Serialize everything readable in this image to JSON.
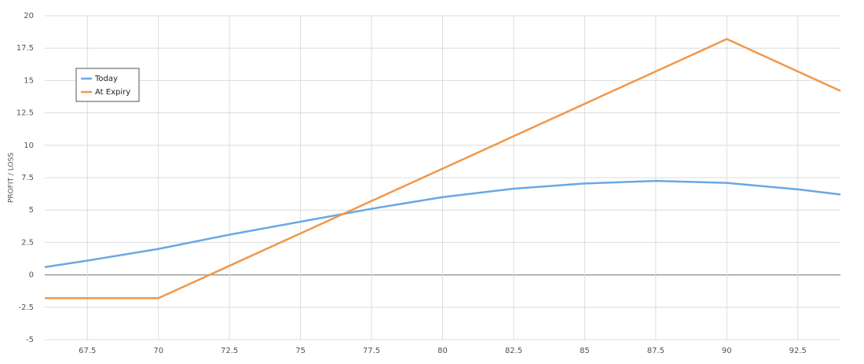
{
  "chart_data": {
    "type": "line",
    "y_label": "PROFIT / LOSS",
    "x": [
      66,
      67.5,
      70,
      72.5,
      75,
      77.5,
      80,
      82.5,
      85,
      87.5,
      90,
      92.5,
      94
    ],
    "series": [
      {
        "name": "Today",
        "color": "#6aa8e3",
        "values": [
          0.6,
          1.1,
          2.0,
          3.1,
          4.1,
          5.1,
          6.0,
          6.65,
          7.05,
          7.25,
          7.1,
          6.6,
          6.2
        ]
      },
      {
        "name": "At Expiry",
        "color": "#f0984a",
        "values": [
          -1.8,
          -1.8,
          -1.8,
          0.7,
          3.2,
          5.7,
          8.2,
          10.7,
          13.2,
          15.7,
          18.2,
          15.7,
          14.2
        ]
      }
    ],
    "xlim": [
      66,
      94
    ],
    "ylim": [
      -5,
      20
    ],
    "xticks": [
      67.5,
      70,
      72.5,
      75,
      77.5,
      80,
      82.5,
      85,
      87.5,
      90,
      92.5
    ],
    "yticks": [
      -5,
      -2.5,
      0,
      2.5,
      5,
      7.5,
      10,
      12.5,
      15,
      17.5,
      20
    ],
    "grid": true,
    "legend": "upper left"
  }
}
